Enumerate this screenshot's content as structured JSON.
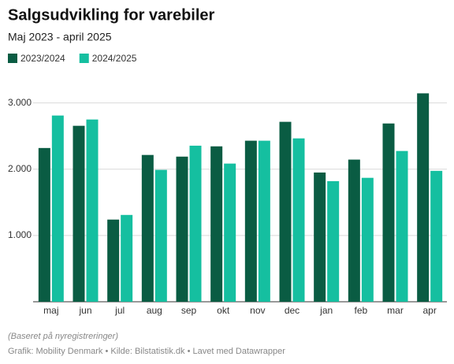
{
  "chart_data": {
    "type": "bar",
    "title": "Salgsudvikling for varebiler",
    "subtitle": "Maj 2023 - april 2025",
    "categories": [
      "maj",
      "jun",
      "jul",
      "aug",
      "sep",
      "okt",
      "nov",
      "dec",
      "jan",
      "feb",
      "mar",
      "apr"
    ],
    "series": [
      {
        "name": "2023/2024",
        "color": "#0a5c43",
        "values": [
          2320,
          2655,
          1240,
          2215,
          2190,
          2345,
          2430,
          2715,
          1950,
          2145,
          2690,
          3145
        ]
      },
      {
        "name": "2024/2025",
        "color": "#15bfa0",
        "values": [
          2810,
          2750,
          1310,
          1990,
          2355,
          2085,
          2430,
          2465,
          1820,
          1870,
          2275,
          1975
        ]
      }
    ],
    "ylim": [
      0,
      3400
    ],
    "yticks": [
      {
        "value": 1000,
        "label": "1.000"
      },
      {
        "value": 2000,
        "label": "2.000"
      },
      {
        "value": 3000,
        "label": "3.000"
      }
    ],
    "grid": true,
    "note": "(Baseret på nyregistreringer)",
    "source": "Grafik: Mobility Denmark • Kilde: Bilstatistik.dk • Lavet med Datawrapper"
  }
}
